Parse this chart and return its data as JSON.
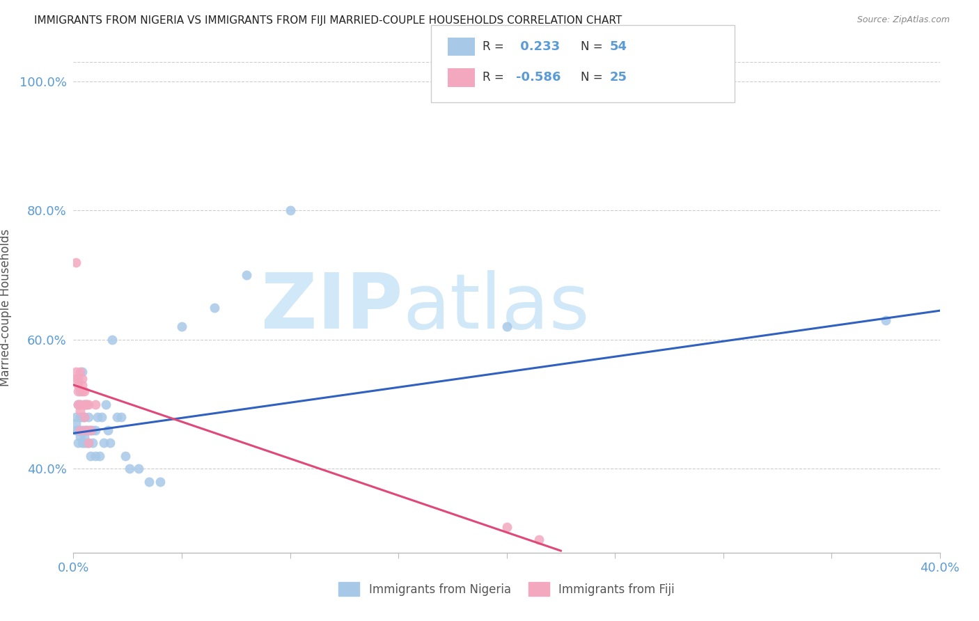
{
  "title": "IMMIGRANTS FROM NIGERIA VS IMMIGRANTS FROM FIJI MARRIED-COUPLE HOUSEHOLDS CORRELATION CHART",
  "source": "Source: ZipAtlas.com",
  "ylabel": "Married-couple Households",
  "yticks": [
    0.4,
    0.6,
    0.8,
    1.0
  ],
  "ytick_labels": [
    "40.0%",
    "60.0%",
    "80.0%",
    "100.0%"
  ],
  "xlim": [
    0.0,
    0.4
  ],
  "ylim": [
    0.27,
    1.03
  ],
  "nigeria_R": 0.233,
  "nigeria_N": 54,
  "fiji_R": -0.586,
  "fiji_N": 25,
  "nigeria_color": "#a8c8e8",
  "fiji_color": "#f4a8c0",
  "nigeria_line_color": "#3060c0",
  "fiji_line_color": "#e04878",
  "watermark_color": "#d0e8f8",
  "nigeria_line_x0": 0.0,
  "nigeria_line_y0": 0.455,
  "nigeria_line_x1": 0.4,
  "nigeria_line_y1": 0.645,
  "fiji_line_x0": 0.0,
  "fiji_line_y0": 0.53,
  "fiji_line_x1": 0.225,
  "fiji_line_y1": 0.273,
  "nigeria_x": [
    0.001,
    0.001,
    0.001,
    0.002,
    0.002,
    0.002,
    0.002,
    0.003,
    0.003,
    0.003,
    0.003,
    0.003,
    0.004,
    0.004,
    0.004,
    0.004,
    0.005,
    0.005,
    0.005,
    0.005,
    0.005,
    0.006,
    0.006,
    0.006,
    0.007,
    0.007,
    0.007,
    0.008,
    0.008,
    0.009,
    0.009,
    0.01,
    0.01,
    0.011,
    0.012,
    0.013,
    0.014,
    0.015,
    0.016,
    0.017,
    0.018,
    0.02,
    0.022,
    0.024,
    0.026,
    0.03,
    0.035,
    0.04,
    0.05,
    0.065,
    0.08,
    0.1,
    0.2,
    0.375
  ],
  "nigeria_y": [
    0.46,
    0.47,
    0.48,
    0.44,
    0.46,
    0.46,
    0.5,
    0.45,
    0.46,
    0.48,
    0.5,
    0.52,
    0.44,
    0.46,
    0.48,
    0.55,
    0.44,
    0.45,
    0.46,
    0.48,
    0.5,
    0.44,
    0.46,
    0.5,
    0.44,
    0.46,
    0.48,
    0.42,
    0.46,
    0.44,
    0.46,
    0.42,
    0.46,
    0.48,
    0.42,
    0.48,
    0.44,
    0.5,
    0.46,
    0.44,
    0.6,
    0.48,
    0.48,
    0.42,
    0.4,
    0.4,
    0.38,
    0.38,
    0.62,
    0.65,
    0.7,
    0.8,
    0.62,
    0.63
  ],
  "fiji_x": [
    0.001,
    0.001,
    0.001,
    0.002,
    0.002,
    0.002,
    0.002,
    0.003,
    0.003,
    0.003,
    0.003,
    0.004,
    0.004,
    0.004,
    0.005,
    0.005,
    0.005,
    0.006,
    0.006,
    0.007,
    0.007,
    0.008,
    0.01,
    0.2,
    0.215
  ],
  "fiji_y": [
    0.54,
    0.55,
    0.72,
    0.5,
    0.52,
    0.53,
    0.54,
    0.46,
    0.49,
    0.5,
    0.55,
    0.52,
    0.53,
    0.54,
    0.48,
    0.5,
    0.52,
    0.46,
    0.5,
    0.44,
    0.5,
    0.46,
    0.5,
    0.31,
    0.29
  ]
}
